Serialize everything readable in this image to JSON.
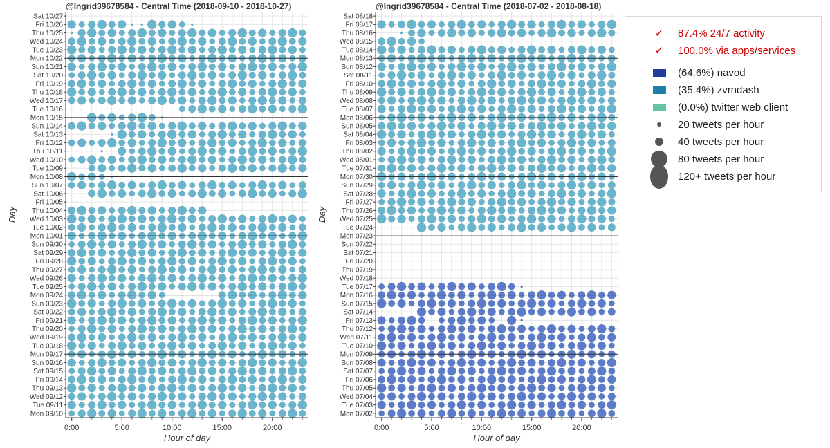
{
  "colors": {
    "navod": "#3a5fc0",
    "zvrndash": "#4aa6c4",
    "twitter_web_client": "#66c2a5",
    "check": "#cc0000"
  },
  "chart_data": [
    {
      "type": "scatter",
      "title": "@Ingrid39678584 - Central Time (2018-09-10 - 2018-10-27)",
      "xlabel": "Hour of day",
      "ylabel": "Day",
      "x_ticks": [
        "0:00",
        "5:00",
        "10:00",
        "15:00",
        "20:00"
      ],
      "x_tick_values": [
        0,
        5,
        10,
        15,
        20
      ],
      "xlim": [
        -0.6,
        23.6
      ],
      "days": [
        "Mon 09/10",
        "Tue 09/11",
        "Wed 09/12",
        "Thu 09/13",
        "Fri 09/14",
        "Sat 09/15",
        "Sun 09/16",
        "Mon 09/17",
        "Tue 09/18",
        "Wed 09/19",
        "Thu 09/20",
        "Fri 09/21",
        "Sat 09/22",
        "Sun 09/23",
        "Mon 09/24",
        "Tue 09/25",
        "Wed 09/26",
        "Thu 09/27",
        "Fri 09/28",
        "Sat 09/29",
        "Sun 09/30",
        "Mon 10/01",
        "Tue 10/02",
        "Wed 10/03",
        "Thu 10/04",
        "Fri 10/05",
        "Sat 10/06",
        "Sun 10/07",
        "Mon 10/08",
        "Tue 10/09",
        "Wed 10/10",
        "Thu 10/11",
        "Fri 10/12",
        "Sat 10/13",
        "Sun 10/14",
        "Mon 10/15",
        "Tue 10/16",
        "Wed 10/17",
        "Thu 10/18",
        "Fri 10/19",
        "Sat 10/20",
        "Sun 10/21",
        "Mon 10/22",
        "Tue 10/23",
        "Wed 10/24",
        "Thu 10/25",
        "Fri 10/26",
        "Sat 10/27"
      ],
      "week_lines": [
        "Mon 09/17",
        "Mon 09/24",
        "Mon 10/01",
        "Mon 10/08",
        "Mon 10/15",
        "Mon 10/22"
      ],
      "activity": [
        {
          "day": "Fri 10/26",
          "hours": [
            0,
            1,
            2,
            3,
            4,
            5,
            8,
            9,
            10,
            11
          ],
          "small": [
            6,
            7,
            12
          ]
        },
        {
          "day": "Thu 10/25",
          "hours": [
            1,
            2,
            3,
            4,
            5,
            6,
            7,
            8,
            9,
            10,
            11,
            12,
            13,
            14,
            15,
            16,
            17,
            18,
            19,
            20,
            21,
            22,
            23
          ],
          "small": [
            0
          ]
        },
        {
          "day": "Tue 10/16",
          "hours": [
            11,
            12,
            13,
            14,
            15,
            16,
            17,
            18,
            19,
            20,
            21,
            22,
            23
          ]
        },
        {
          "day": "Mon 10/15",
          "hours": [
            2,
            3,
            4,
            5,
            6,
            7,
            8
          ],
          "small": [
            9
          ]
        },
        {
          "day": "Sun 10/14",
          "hours": [
            0,
            1,
            2,
            3,
            4,
            5,
            6,
            7,
            8,
            9,
            10,
            11,
            12,
            13,
            14,
            15,
            16,
            17,
            18,
            19,
            20,
            21,
            22,
            23
          ]
        },
        {
          "day": "Sat 10/13",
          "hours": [
            5,
            6,
            7,
            8,
            9,
            10,
            11,
            12,
            13,
            14,
            15,
            16,
            17,
            18,
            19,
            20,
            21,
            22,
            23
          ],
          "small": [
            4
          ]
        },
        {
          "day": "Fri 10/12",
          "hours": [
            0,
            1,
            2,
            3,
            4,
            5,
            6,
            7,
            8,
            9,
            10,
            11,
            12,
            13,
            14,
            15,
            16,
            17,
            18,
            19,
            20,
            21,
            22,
            23
          ]
        },
        {
          "day": "Thu 10/11",
          "hours": [
            5,
            6,
            7,
            8,
            9,
            10,
            11,
            12,
            13,
            14,
            15,
            16,
            17,
            18,
            19,
            20,
            21,
            22,
            23
          ],
          "small": [
            3
          ]
        },
        {
          "day": "Wed 10/10",
          "hours": [
            0,
            1,
            2,
            3,
            4,
            5,
            6,
            7,
            8,
            9,
            10,
            11,
            12,
            13,
            14,
            15,
            16,
            17,
            18,
            19,
            20,
            21,
            22,
            23
          ]
        },
        {
          "day": "Tue 10/09",
          "hours": [
            2,
            3,
            4,
            5,
            6,
            7,
            8,
            9,
            10,
            11,
            12,
            13,
            14,
            15,
            16,
            17,
            18,
            19,
            20,
            21,
            22,
            23
          ]
        },
        {
          "day": "Mon 10/08",
          "hours": [
            0,
            1,
            2,
            3
          ],
          "small": [
            4
          ]
        },
        {
          "day": "Sun 10/07",
          "hours": [
            0,
            1,
            2,
            3,
            4,
            5,
            6,
            7,
            8,
            9,
            10,
            11,
            12,
            13,
            14,
            15,
            16,
            17,
            18,
            19,
            20,
            21,
            22,
            23
          ]
        },
        {
          "day": "Sat 10/06",
          "hours": [
            2,
            3,
            4,
            5,
            6,
            7,
            8,
            9,
            10,
            11,
            12,
            13,
            14,
            15,
            16,
            17,
            18,
            19,
            20,
            21,
            22,
            23
          ]
        },
        {
          "day": "Fri 10/05",
          "hours": []
        },
        {
          "day": "Thu 10/04",
          "hours": [
            0,
            1,
            2,
            3,
            4,
            5,
            6,
            7,
            8,
            9,
            10,
            11,
            12,
            13
          ]
        },
        {
          "day": "Tue 09/18",
          "hours": [
            0,
            1,
            2,
            3,
            4,
            5,
            6,
            7,
            8,
            9,
            10,
            11,
            12,
            13,
            14,
            15,
            16,
            17,
            18,
            19,
            20,
            21,
            22,
            23
          ]
        }
      ],
      "full_days": [
        "Mon 09/10",
        "Tue 09/11",
        "Wed 09/12",
        "Thu 09/13",
        "Fri 09/14",
        "Sat 09/15",
        "Sun 09/16",
        "Mon 09/17",
        "Wed 09/19",
        "Thu 09/20",
        "Fri 09/21",
        "Sat 09/22",
        "Sun 09/23",
        "Tue 09/25",
        "Wed 09/26",
        "Thu 09/27",
        "Fri 09/28",
        "Sat 09/29",
        "Sun 09/30",
        "Mon 10/01",
        "Tue 10/02",
        "Wed 10/03",
        "Wed 10/17",
        "Thu 10/18",
        "Fri 10/19",
        "Sat 10/20",
        "Sun 10/21",
        "Mon 10/22",
        "Tue 10/23",
        "Wed 10/24"
      ],
      "partial_days": [
        {
          "day": "Mon 09/24",
          "hours": [
            0,
            1,
            2,
            3,
            4,
            5,
            6,
            7,
            8,
            9,
            15,
            16,
            17,
            18,
            19,
            20,
            21,
            22,
            23
          ]
        }
      ],
      "series_color": "zvrndash"
    },
    {
      "type": "scatter",
      "title": "@Ingrid39678584 - Central Time (2018-07-02 - 2018-08-18)",
      "xlabel": "Hour of day",
      "ylabel": "Day",
      "x_ticks": [
        "0:00",
        "5:00",
        "10:00",
        "15:00",
        "20:00"
      ],
      "x_tick_values": [
        0,
        5,
        10,
        15,
        20
      ],
      "xlim": [
        -0.6,
        23.6
      ],
      "days": [
        "Mon 07/02",
        "Tue 07/03",
        "Wed 07/04",
        "Thu 07/05",
        "Fri 07/06",
        "Sat 07/07",
        "Sun 07/08",
        "Mon 07/09",
        "Tue 07/10",
        "Wed 07/11",
        "Thu 07/12",
        "Fri 07/13",
        "Sat 07/14",
        "Sun 07/15",
        "Mon 07/16",
        "Tue 07/17",
        "Wed 07/18",
        "Thu 07/19",
        "Fri 07/20",
        "Sat 07/21",
        "Sun 07/22",
        "Mon 07/23",
        "Tue 07/24",
        "Wed 07/25",
        "Thu 07/26",
        "Fri 07/27",
        "Sat 07/28",
        "Sun 07/29",
        "Mon 07/30",
        "Tue 07/31",
        "Wed 08/01",
        "Thu 08/02",
        "Fri 08/03",
        "Sat 08/04",
        "Sun 08/05",
        "Mon 08/06",
        "Tue 08/07",
        "Wed 08/08",
        "Thu 08/09",
        "Fri 08/10",
        "Sat 08/11",
        "Sun 08/12",
        "Mon 08/13",
        "Tue 08/14",
        "Wed 08/15",
        "Thu 08/16",
        "Fri 08/17",
        "Sat 08/18"
      ],
      "week_lines": [
        "Mon 07/09",
        "Mon 07/16",
        "Mon 07/23",
        "Mon 07/30",
        "Mon 08/06",
        "Mon 08/13"
      ],
      "blue_days": [
        "Mon 07/02",
        "Tue 07/03",
        "Wed 07/04",
        "Thu 07/05",
        "Fri 07/06",
        "Sat 07/07",
        "Sun 07/08",
        "Mon 07/09",
        "Tue 07/10",
        "Wed 07/11",
        "Thu 07/12",
        "Fri 07/13",
        "Sat 07/14",
        "Sun 07/15",
        "Mon 07/16",
        "Tue 07/17"
      ],
      "activity": [
        {
          "day": "Tue 07/17",
          "hours": [
            0,
            1,
            2,
            3,
            4,
            5,
            6,
            7,
            8,
            9,
            10,
            11,
            12,
            13
          ],
          "small": [
            14
          ]
        },
        {
          "day": "Sat 07/14",
          "hours": [
            4,
            5,
            6,
            7,
            8,
            9,
            10,
            11,
            12,
            13,
            14,
            15,
            16,
            17,
            18,
            19,
            20,
            21,
            22,
            23
          ]
        },
        {
          "day": "Fri 07/13",
          "hours": [
            0,
            1,
            2,
            3,
            4,
            6,
            7,
            8,
            9,
            10,
            11,
            13
          ],
          "small": [
            14
          ]
        },
        {
          "day": "Thu 07/12",
          "hours": [
            0,
            1,
            2,
            3,
            4,
            5,
            6,
            7,
            8,
            9,
            10,
            11,
            12,
            13,
            14,
            15,
            16,
            17,
            18,
            19,
            20,
            21,
            22,
            23
          ],
          "small": [
            5
          ]
        },
        {
          "day": "Wed 07/18",
          "hours": []
        },
        {
          "day": "Thu 07/19",
          "hours": []
        },
        {
          "day": "Fri 07/20",
          "hours": []
        },
        {
          "day": "Sat 07/21",
          "hours": []
        },
        {
          "day": "Sun 07/22",
          "hours": []
        },
        {
          "day": "Mon 07/23",
          "hours": []
        },
        {
          "day": "Tue 07/24",
          "hours": [
            4,
            5,
            6,
            7,
            8,
            9,
            10,
            11,
            12,
            13,
            14,
            15,
            16,
            17,
            18,
            19,
            20,
            21,
            22,
            23
          ]
        },
        {
          "day": "Thu 08/16",
          "hours": [
            3,
            4,
            5,
            6,
            7,
            8,
            9,
            10,
            11,
            12,
            13,
            14,
            15,
            16,
            17,
            18,
            19,
            20,
            21,
            22,
            23
          ],
          "small": [
            2
          ]
        },
        {
          "day": "Wed 08/15",
          "hours": [
            0,
            1,
            2,
            3,
            4
          ]
        },
        {
          "day": "Sat 08/18",
          "hours": []
        },
        {
          "day": "Mon 07/30",
          "hours": [
            0,
            1,
            2,
            3,
            4,
            5,
            6,
            7,
            8,
            9,
            10,
            11,
            12,
            13,
            14,
            15,
            16,
            17,
            18,
            19,
            20,
            21,
            22,
            23
          ]
        }
      ],
      "full_days": [
        "Mon 07/02",
        "Tue 07/03",
        "Wed 07/04",
        "Thu 07/05",
        "Fri 07/06",
        "Sat 07/07",
        "Sun 07/08",
        "Mon 07/09",
        "Tue 07/10",
        "Wed 07/11",
        "Sun 07/15",
        "Mon 07/16",
        "Wed 07/25",
        "Thu 07/26",
        "Fri 07/27",
        "Sat 07/28",
        "Sun 07/29",
        "Tue 07/31",
        "Wed 08/01",
        "Thu 08/02",
        "Fri 08/03",
        "Sat 08/04",
        "Sun 08/05",
        "Mon 08/06",
        "Tue 08/07",
        "Wed 08/08",
        "Thu 08/09",
        "Fri 08/10",
        "Sat 08/11",
        "Sun 08/12",
        "Mon 08/13",
        "Tue 08/14",
        "Fri 08/17"
      ],
      "series_color": "zvrndash"
    }
  ],
  "legend": {
    "checks": [
      {
        "mark": "✓",
        "text": "87.4% 24/7 activity"
      },
      {
        "mark": "✓",
        "text": "100.0% via apps/services"
      }
    ],
    "sources": [
      {
        "text": "(64.6%) navod",
        "color": "#1f3f9e"
      },
      {
        "text": "(35.4%) zvrndash",
        "color": "#1f7fa8"
      },
      {
        "text": "(0.0%) twitter web client",
        "color": "#66c2a5"
      }
    ],
    "sizes": [
      {
        "text": "20 tweets per hour",
        "tweets": 20
      },
      {
        "text": "40 tweets per hour",
        "tweets": 40
      },
      {
        "text": "80 tweets per hour",
        "tweets": 80
      },
      {
        "text": "120+ tweets per hour",
        "tweets": 120
      }
    ]
  }
}
